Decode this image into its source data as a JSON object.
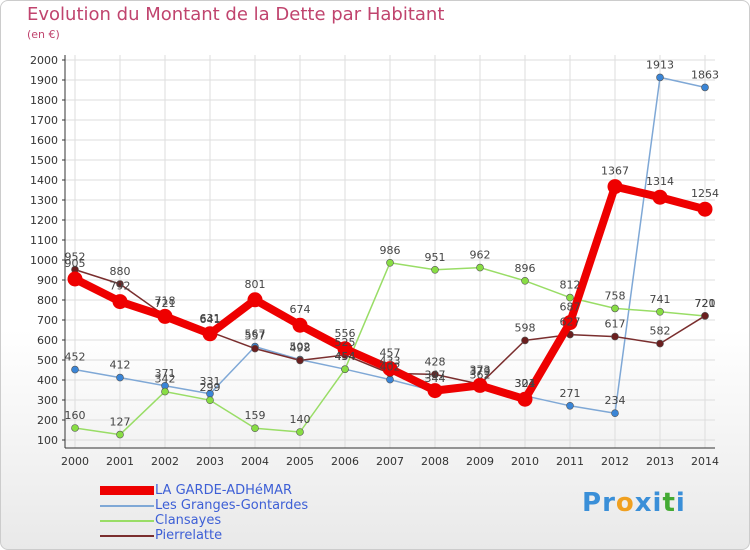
{
  "header": {
    "title": "Evolution du Montant de la Dette par Habitant",
    "subtitle": "(en €)"
  },
  "colors": {
    "background": "#ffffff",
    "grid": "#dddddd",
    "axis": "#333333",
    "title": "#c0446e",
    "legend_text": "#3d5fd6"
  },
  "chart_data": {
    "type": "line",
    "title": "Evolution du Montant de la Dette par Habitant",
    "ylabel": "(en €)",
    "xlabel": "",
    "x": [
      "2000",
      "2001",
      "2002",
      "2003",
      "2004",
      "2005",
      "2006",
      "2007",
      "2008",
      "2009",
      "2010",
      "2011",
      "2012",
      "2013",
      "2014"
    ],
    "ylim": [
      100,
      2000
    ],
    "yticks": [
      "100",
      "200",
      "300",
      "400",
      "500",
      "600",
      "700",
      "800",
      "900",
      "1000",
      "1100",
      "1200",
      "1300",
      "1400",
      "1500",
      "1600",
      "1700",
      "1800",
      "1900",
      "2000"
    ],
    "grid": true,
    "legend_position": "bottom-left",
    "series": [
      {
        "name": "LA GARDE-ADHéMAR",
        "color": "#ee0000",
        "marker": "#ee0000",
        "emphasis": true,
        "values": [
          905,
          792,
          718,
          631,
          801,
          674,
          556,
          457,
          347,
          373,
          304,
          687,
          1367,
          1314,
          1254
        ]
      },
      {
        "name": "Les Granges-Gontardes",
        "color": "#7fa8d6",
        "marker": "#3a85d6",
        "values": [
          452,
          412,
          371,
          331,
          567,
          502,
          454,
          402,
          344,
          362,
          321,
          271,
          234,
          1913,
          1863
        ]
      },
      {
        "name": "Clansayes",
        "color": "#99dd66",
        "marker": "#88dd44",
        "values": [
          160,
          127,
          342,
          299,
          159,
          140,
          454,
          986,
          951,
          962,
          896,
          812,
          758,
          741,
          720
        ]
      },
      {
        "name": "Pierrelatte",
        "color": "#7a2e2e",
        "marker": "#6b1f1f",
        "values": [
          952,
          880,
          721,
          641,
          557,
          498,
          525,
          433,
          428,
          379,
          598,
          627,
          617,
          582,
          721
        ]
      }
    ]
  },
  "brand": {
    "letters": [
      "P",
      "r",
      "o",
      "x",
      "i",
      "t",
      "i"
    ],
    "letter_colors": [
      "#3a8fd8",
      "#3a8fd8",
      "#f0a020",
      "#3a8fd8",
      "#3a8fd8",
      "#44aa33",
      "#3a8fd8"
    ]
  }
}
